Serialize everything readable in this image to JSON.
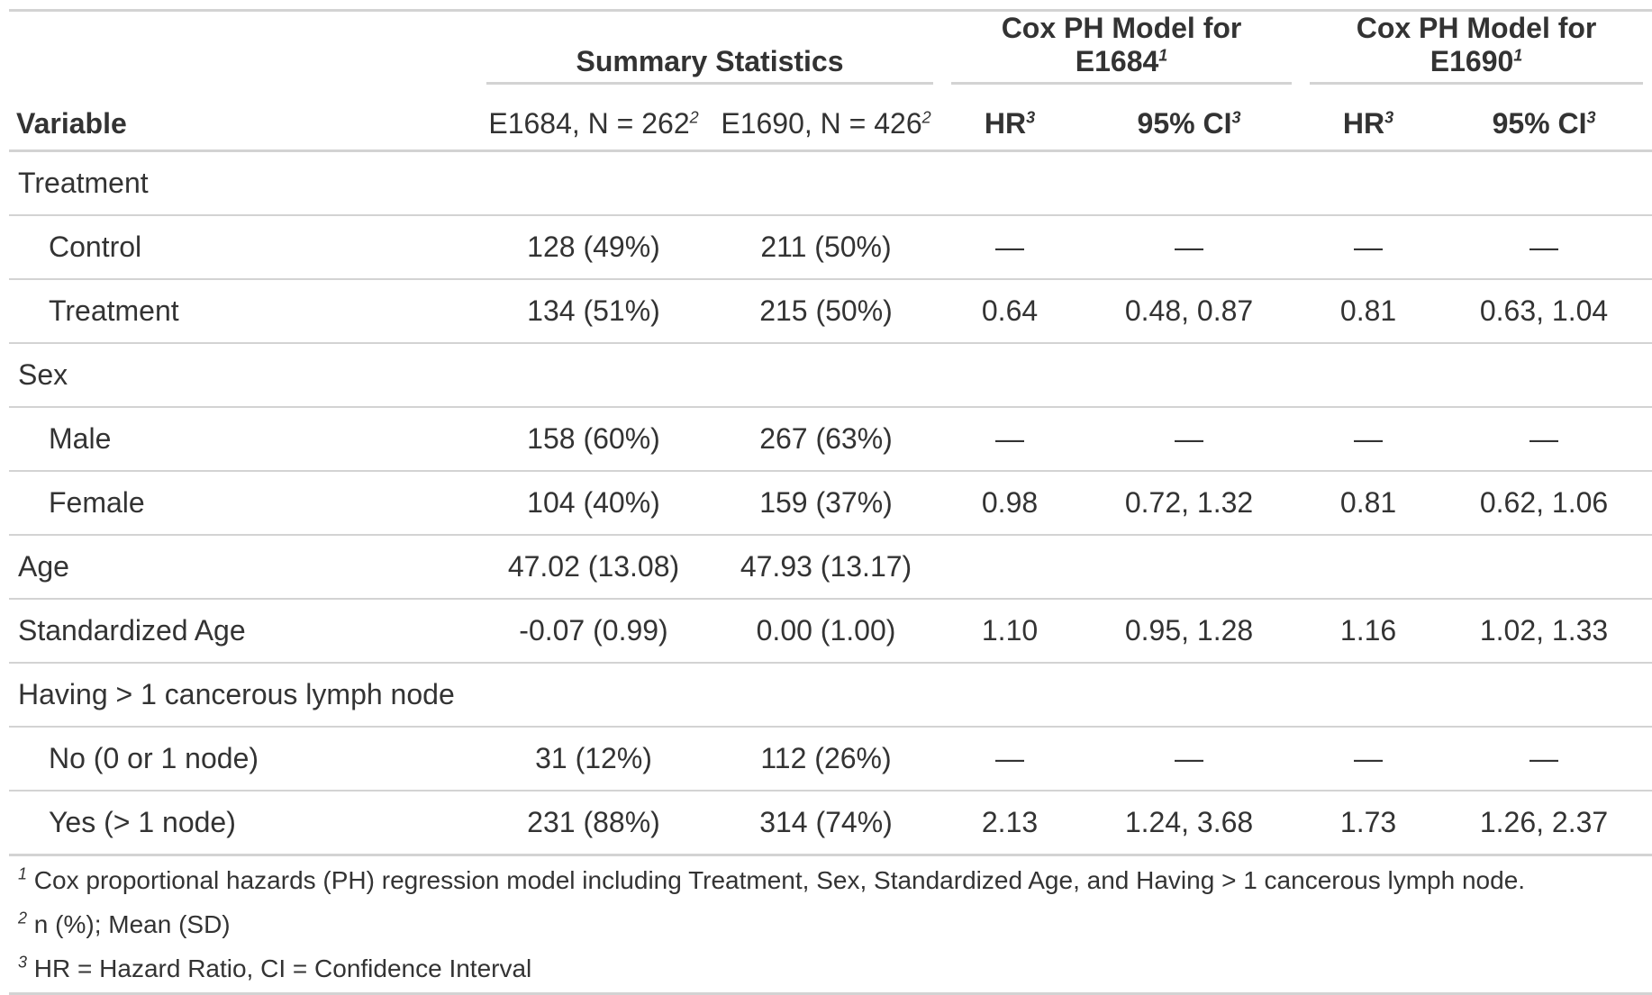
{
  "header": {
    "spanners": {
      "summary": "Summary Statistics",
      "cox1684": "Cox PH Model for E1684",
      "cox1690": "Cox PH Model for E1690"
    },
    "columns": {
      "variable": "Variable",
      "e1684": "E1684, N = 262",
      "e1690": "E1690, N = 426",
      "hr1": "HR",
      "ci1": "95% CI",
      "hr2": "HR",
      "ci2": "95% CI"
    },
    "marks": {
      "one": "1",
      "two": "2",
      "three": "3"
    }
  },
  "rows": [
    {
      "label": "Treatment",
      "indent": false,
      "e1684": "",
      "e1690": "",
      "hr1": "",
      "ci1": "",
      "hr2": "",
      "ci2": ""
    },
    {
      "label": "Control",
      "indent": true,
      "e1684": "128 (49%)",
      "e1690": "211 (50%)",
      "hr1": "—",
      "ci1": "—",
      "hr2": "—",
      "ci2": "—"
    },
    {
      "label": "Treatment",
      "indent": true,
      "e1684": "134 (51%)",
      "e1690": "215 (50%)",
      "hr1": "0.64",
      "ci1": "0.48, 0.87",
      "hr2": "0.81",
      "ci2": "0.63, 1.04"
    },
    {
      "label": "Sex",
      "indent": false,
      "e1684": "",
      "e1690": "",
      "hr1": "",
      "ci1": "",
      "hr2": "",
      "ci2": ""
    },
    {
      "label": "Male",
      "indent": true,
      "e1684": "158 (60%)",
      "e1690": "267 (63%)",
      "hr1": "—",
      "ci1": "—",
      "hr2": "—",
      "ci2": "—"
    },
    {
      "label": "Female",
      "indent": true,
      "e1684": "104 (40%)",
      "e1690": "159 (37%)",
      "hr1": "0.98",
      "ci1": "0.72, 1.32",
      "hr2": "0.81",
      "ci2": "0.62, 1.06"
    },
    {
      "label": "Age",
      "indent": false,
      "e1684": "47.02 (13.08)",
      "e1690": "47.93 (13.17)",
      "hr1": "",
      "ci1": "",
      "hr2": "",
      "ci2": ""
    },
    {
      "label": "Standardized Age",
      "indent": false,
      "e1684": "-0.07 (0.99)",
      "e1690": "0.00 (1.00)",
      "hr1": "1.10",
      "ci1": "0.95, 1.28",
      "hr2": "1.16",
      "ci2": "1.02, 1.33"
    },
    {
      "label": "Having > 1 cancerous lymph node",
      "indent": false,
      "e1684": "",
      "e1690": "",
      "hr1": "",
      "ci1": "",
      "hr2": "",
      "ci2": ""
    },
    {
      "label": "No (0 or 1 node)",
      "indent": true,
      "e1684": "31 (12%)",
      "e1690": "112 (26%)",
      "hr1": "—",
      "ci1": "—",
      "hr2": "—",
      "ci2": "—"
    },
    {
      "label": "Yes (> 1 node)",
      "indent": true,
      "e1684": "231 (88%)",
      "e1690": "314 (74%)",
      "hr1": "2.13",
      "ci1": "1.24, 3.68",
      "hr2": "1.73",
      "ci2": "1.26, 2.37"
    }
  ],
  "footnotes": [
    {
      "mark": "1",
      "text": "Cox proportional hazards (PH) regression model including Treatment, Sex, Standardized Age, and Having > 1 cancerous lymph node."
    },
    {
      "mark": "2",
      "text": "n (%); Mean (SD)"
    },
    {
      "mark": "3",
      "text": "HR = Hazard Ratio, CI = Confidence Interval"
    }
  ]
}
